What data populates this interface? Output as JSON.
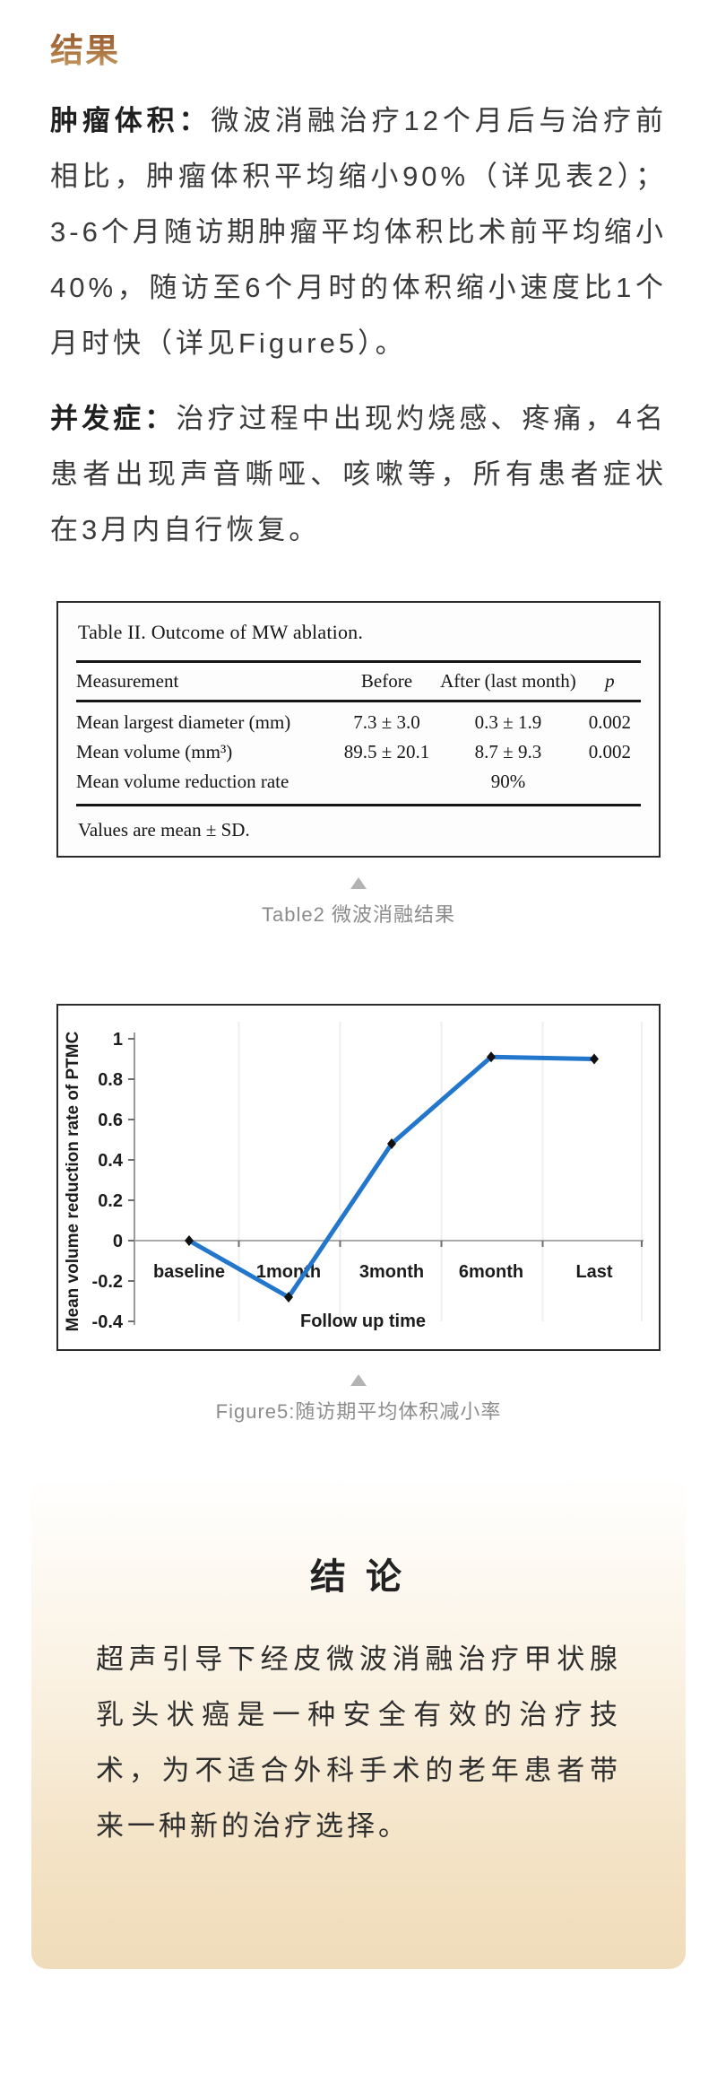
{
  "page": {
    "results_heading": "结果",
    "paragraphs": {
      "tumor_volume_label": "肿瘤体积：",
      "tumor_volume_text": "微波消融治疗12个月后与治疗前相比，肿瘤体积平均缩小90%（详见表2）；3-6个月随访期肿瘤平均体积比术前平均缩小40%，随访至6个月时的体积缩小速度比1个月时快（详见Figure5）。",
      "complications_label": "并发症：",
      "complications_text": "治疗过程中出现灼烧感、疼痛，4名患者出现声音嘶哑、咳嗽等，所有患者症状在3月内自行恢复。"
    },
    "table_caption": "Table2 微波消融结果",
    "figure_caption": "Figure5:随访期平均体积减小率",
    "conclusion": {
      "heading": "结 论",
      "text": "超声引导下经皮微波消融治疗甲状腺乳头状癌是一种安全有效的治疗技术，为不适合外科手术的老年患者带来一种新的治疗选择。"
    }
  },
  "table_figure": {
    "title": "Table II. Outcome of MW ablation.",
    "columns": [
      "Measurement",
      "Before",
      "After (last month)",
      "p"
    ],
    "rows": [
      [
        "Mean largest diameter (mm)",
        "7.3 ± 3.0",
        "0.3 ± 1.9",
        "0.002"
      ],
      [
        "Mean volume (mm³)",
        "89.5 ± 20.1",
        "8.7 ± 9.3",
        "0.002"
      ],
      [
        "Mean volume reduction rate",
        "",
        "90%",
        ""
      ]
    ],
    "footnote": "Values are mean ± SD."
  },
  "chart_data": {
    "type": "line",
    "categories": [
      "baseline",
      "1month",
      "3month",
      "6month",
      "Last"
    ],
    "series": [
      {
        "name": "Mean volume reduction rate of PTMC",
        "values": [
          0,
          -0.28,
          0.48,
          0.91,
          0.9
        ]
      }
    ],
    "title": "",
    "xlabel": "Follow up time",
    "ylabel": "Mean volume reduction rate of PTMC",
    "ylim": [
      -0.4,
      1
    ],
    "yticks": [
      "1",
      "0.8",
      "0.6",
      "0.4",
      "0.2",
      "0",
      "-0.2",
      "-0.4"
    ],
    "grid": "faint-vertical",
    "legend": "none",
    "line_color": "#2277cc",
    "marker": "diamond",
    "marker_color": "#111111"
  },
  "colors": {
    "heading_gold_top": "#96562e",
    "heading_gold_bottom": "#cfa873",
    "caption_gray": "#8c8c8c",
    "triangle_gray": "#b3b3b3",
    "conclusion_bg_bottom": "#f0dcba",
    "chart_line_blue": "#2277cc",
    "axis_gray": "#a0a0a0"
  }
}
